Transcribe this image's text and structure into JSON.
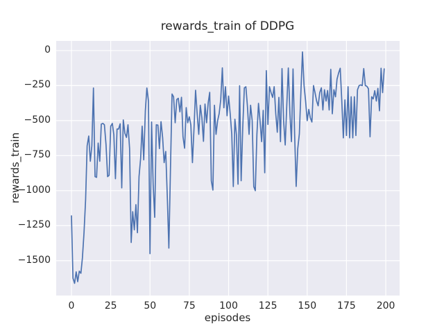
{
  "chart_data": {
    "type": "line",
    "title": "rewards_train of DDPG",
    "xlabel": "episodes",
    "ylabel": "rewards_train",
    "x_ticks": [
      0,
      25,
      50,
      75,
      100,
      125,
      150,
      175,
      200
    ],
    "y_ticks": [
      0,
      -250,
      -500,
      -750,
      -1000,
      -1250,
      -1500
    ],
    "xlim": [
      -9.7,
      208.8
    ],
    "ylim": [
      -1749,
      69
    ],
    "grid": true,
    "legend": false,
    "line_color": "#4c72b0",
    "axes_background": "#eaeaf2",
    "grid_color": "#ffffff",
    "text_color": "#262626",
    "series": [
      {
        "name": "rewards_train",
        "x_start": 0,
        "x_step": 1,
        "values": [
          -1180,
          -1625,
          -1662,
          -1580,
          -1650,
          -1575,
          -1590,
          -1480,
          -1300,
          -1065,
          -680,
          -610,
          -790,
          -680,
          -267,
          -900,
          -905,
          -660,
          -790,
          -525,
          -520,
          -530,
          -670,
          -900,
          -890,
          -540,
          -520,
          -600,
          -915,
          -560,
          -560,
          -523,
          -980,
          -495,
          -590,
          -620,
          -530,
          -700,
          -1370,
          -1150,
          -1280,
          -1100,
          -1300,
          -900,
          -770,
          -540,
          -780,
          -430,
          -267,
          -360,
          -1450,
          -510,
          -960,
          -1190,
          -530,
          -532,
          -700,
          -507,
          -620,
          -800,
          -720,
          -1050,
          -1410,
          -850,
          -310,
          -330,
          -515,
          -349,
          -340,
          -437,
          -333,
          -615,
          -697,
          -407,
          -515,
          -473,
          -532,
          -800,
          -550,
          -283,
          -450,
          -598,
          -390,
          -480,
          -648,
          -382,
          -515,
          -373,
          -298,
          -930,
          -996,
          -390,
          -598,
          -500,
          -450,
          -350,
          -123,
          -408,
          -258,
          -465,
          -325,
          -450,
          -598,
          -971,
          -490,
          -600,
          -954,
          -251,
          -929,
          -550,
          -267,
          -258,
          -400,
          -598,
          -390,
          -500,
          -971,
          -1000,
          -600,
          -377,
          -500,
          -650,
          -427,
          -872,
          -143,
          -527,
          -258,
          -300,
          -334,
          -258,
          -450,
          -583,
          -334,
          -650,
          -128,
          -500,
          -674,
          -400,
          -124,
          -450,
          -650,
          -131,
          -600,
          -970,
          -700,
          -595,
          -300,
          -10,
          -250,
          -360,
          -500,
          -420,
          -480,
          -510,
          -250,
          -300,
          -360,
          -394,
          -300,
          -266,
          -424,
          -279,
          -360,
          -285,
          -424,
          -134,
          -451,
          -279,
          -330,
          -204,
          -160,
          -126,
          -352,
          -623,
          -352,
          -606,
          -258,
          -623,
          -330,
          -623,
          -330,
          -606,
          -280,
          -250,
          -245,
          -250,
          -128,
          -250,
          -255,
          -273,
          -615,
          -330,
          -345,
          -286,
          -360,
          -270,
          -430,
          -126,
          -300,
          -130
        ]
      }
    ]
  }
}
